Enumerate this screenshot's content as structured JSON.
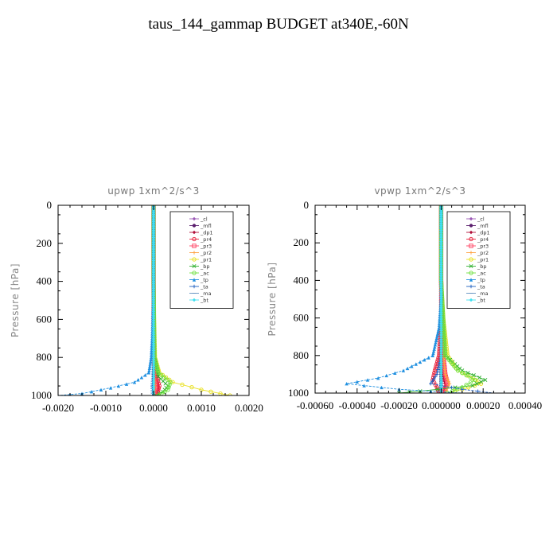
{
  "figure": {
    "title": "taus_144_gammap  BUDGET at340E,-60N"
  },
  "legend_entries": [
    {
      "label": "_cl",
      "color": "#9b59b6",
      "marker": "diamond"
    },
    {
      "label": "_mfl",
      "color": "#5b1f6e",
      "marker": "circle"
    },
    {
      "label": "_dp1",
      "color": "#b0103a",
      "marker": "diamond"
    },
    {
      "label": "_pr4",
      "color": "#e8203a",
      "marker": "circle-open"
    },
    {
      "label": "_pr3",
      "color": "#ff4060",
      "marker": "square-open"
    },
    {
      "label": "_pr2",
      "color": "#ffa040",
      "marker": "plus"
    },
    {
      "label": "_pr1",
      "color": "#e8e020",
      "marker": "circle-open"
    },
    {
      "label": "_bp",
      "color": "#30b030",
      "marker": "x"
    },
    {
      "label": "_ac",
      "color": "#70e040",
      "marker": "circle-open"
    },
    {
      "label": "_tp",
      "color": "#2090e0",
      "marker": "triangle"
    },
    {
      "label": "_ta",
      "color": "#2060c0",
      "marker": "plus"
    },
    {
      "label": "_ma",
      "color": "#6090c0",
      "marker": "dash"
    },
    {
      "label": "_bt",
      "color": "#40e0f0",
      "marker": "diamond"
    }
  ],
  "chart_data": [
    {
      "type": "line",
      "title": "upwp   1xm^2/s^3",
      "ylabel": "Pressure [hPa]",
      "xlabel": "",
      "xlim": [
        -0.002,
        0.002
      ],
      "ylim": [
        1000,
        0
      ],
      "y_inverted": true,
      "xticks": [
        "-0.0020",
        "-0.0010",
        "0.0000",
        "0.0010",
        "0.0020"
      ],
      "xtick_values": [
        -0.002,
        -0.001,
        0.0,
        0.001,
        0.002
      ],
      "yticks": [
        "0",
        "200",
        "400",
        "600",
        "800",
        "1000"
      ],
      "ytick_values": [
        0,
        200,
        400,
        600,
        800,
        1000
      ],
      "legend_position": "top-right",
      "series": [
        {
          "name": "_cl",
          "pressure": [
            0,
            200,
            400,
            600,
            800,
            900,
            950,
            1000
          ],
          "values": [
            0,
            0,
            0,
            0,
            0,
            0,
            0,
            0
          ]
        },
        {
          "name": "_mfl",
          "pressure": [
            0,
            200,
            400,
            600,
            800,
            900,
            950,
            1000
          ],
          "values": [
            0,
            0,
            0,
            0,
            0,
            0,
            0,
            0
          ]
        },
        {
          "name": "_dp1",
          "pressure": [
            0,
            200,
            400,
            600,
            800,
            900,
            960,
            1000
          ],
          "values": [
            0,
            0,
            0,
            0,
            2e-05,
            5e-05,
            0.0001,
            5e-05
          ]
        },
        {
          "name": "_pr4",
          "pressure": [
            0,
            200,
            400,
            600,
            800,
            900,
            950,
            980,
            1000
          ],
          "values": [
            0,
            0,
            0,
            0,
            2e-05,
            7e-05,
            0.00012,
            9e-05,
            3e-05
          ]
        },
        {
          "name": "_pr3",
          "pressure": [
            0,
            400,
            800,
            900,
            950,
            1000
          ],
          "values": [
            0,
            0,
            1e-05,
            3e-05,
            5e-05,
            2e-05
          ]
        },
        {
          "name": "_pr2",
          "pressure": [
            0,
            400,
            800,
            900,
            950,
            1000
          ],
          "values": [
            0,
            0,
            1e-05,
            2e-05,
            3e-05,
            1e-05
          ]
        },
        {
          "name": "_pr1",
          "pressure": [
            0,
            200,
            400,
            600,
            800,
            880,
            930,
            970,
            1000
          ],
          "values": [
            0,
            0,
            0,
            1e-05,
            3e-05,
            0.00012,
            0.0004,
            0.001,
            0.0016
          ]
        },
        {
          "name": "_bp",
          "pressure": [
            0,
            400,
            800,
            900,
            950,
            980,
            1000
          ],
          "values": [
            0,
            0,
            2e-05,
            0.0001,
            0.0003,
            0.0002,
            5e-05
          ]
        },
        {
          "name": "_ac",
          "pressure": [
            0,
            400,
            800,
            880,
            930,
            970,
            1000
          ],
          "values": [
            0,
            0,
            2e-05,
            0.0001,
            0.00035,
            0.0003,
            0.0001
          ]
        },
        {
          "name": "_tp",
          "pressure": [
            0,
            400,
            600,
            700,
            800,
            880,
            930,
            960,
            990,
            1000
          ],
          "values": [
            0,
            0,
            -2e-05,
            -3e-05,
            -5e-05,
            -0.0001,
            -0.0004,
            -0.0009,
            -0.0015,
            -0.002
          ]
        },
        {
          "name": "_ta",
          "pressure": [
            0,
            400,
            800,
            900,
            950,
            1000
          ],
          "values": [
            0,
            0,
            0,
            -1e-05,
            -3e-05,
            -2e-05
          ]
        },
        {
          "name": "_ma",
          "pressure": [
            0,
            400,
            800,
            1000
          ],
          "values": [
            0,
            0,
            0,
            0
          ]
        },
        {
          "name": "_bt",
          "pressure": [
            0,
            400,
            800,
            1000
          ],
          "values": [
            0,
            0,
            0,
            0
          ]
        }
      ]
    },
    {
      "type": "line",
      "title": "vpwp   1xm^2/s^3",
      "ylabel": "Pressure [hPa]",
      "xlabel": "",
      "xlim": [
        -0.0006,
        0.0004
      ],
      "ylim": [
        1000,
        0
      ],
      "y_inverted": true,
      "xticks": [
        "-0.00060",
        "-0.00040",
        "-0.00020",
        "0.000000",
        "0.00020",
        "0.00040"
      ],
      "xtick_values": [
        -0.0006,
        -0.0004,
        -0.0002,
        0.0,
        0.0002,
        0.0004
      ],
      "yticks": [
        "0",
        "200",
        "400",
        "600",
        "800",
        "1000"
      ],
      "ytick_values": [
        0,
        200,
        400,
        600,
        800,
        1000
      ],
      "legend_position": "top-right",
      "series": [
        {
          "name": "_cl",
          "pressure": [
            0,
            200,
            400,
            600,
            800,
            900,
            950,
            1000
          ],
          "values": [
            0,
            0,
            0,
            0,
            0,
            0,
            0,
            0
          ]
        },
        {
          "name": "_mfl",
          "pressure": [
            0,
            200,
            400,
            600,
            800,
            900,
            950,
            1000
          ],
          "values": [
            0,
            0,
            0,
            0,
            0,
            0,
            0,
            0
          ]
        },
        {
          "name": "_dp1",
          "pressure": [
            0,
            200,
            400,
            600,
            800,
            900,
            960,
            1000
          ],
          "values": [
            0,
            0,
            0,
            0,
            5e-06,
            1e-05,
            2e-05,
            1e-05
          ]
        },
        {
          "name": "_pr4",
          "pressure": [
            0,
            200,
            400,
            600,
            800,
            880,
            930,
            970,
            1000
          ],
          "values": [
            0,
            0,
            0,
            0,
            -1e-05,
            -3e-05,
            -4e-05,
            -2e-05,
            -1e-05
          ]
        },
        {
          "name": "_pr3",
          "pressure": [
            0,
            400,
            800,
            900,
            950,
            1000
          ],
          "values": [
            0,
            0,
            1e-05,
            2e-05,
            3e-05,
            1e-05
          ]
        },
        {
          "name": "_pr2",
          "pressure": [
            0,
            400,
            800,
            900,
            950,
            1000
          ],
          "values": [
            0,
            0,
            1e-05,
            2e-05,
            4e-05,
            2e-05
          ]
        },
        {
          "name": "_pr1",
          "pressure": [
            0,
            200,
            400,
            600,
            800,
            880,
            920,
            950,
            980,
            1000
          ],
          "values": [
            0,
            0,
            0,
            1e-05,
            3e-05,
            8e-05,
            0.00015,
            0.00019,
            0.0001,
            3e-05
          ]
        },
        {
          "name": "_bp",
          "pressure": [
            0,
            400,
            800,
            880,
            930,
            960,
            990,
            1000
          ],
          "values": [
            0,
            0,
            2e-05,
            0.0001,
            0.00021,
            0.00015,
            -0.0001,
            -0.0002
          ]
        },
        {
          "name": "_ac",
          "pressure": [
            0,
            400,
            800,
            880,
            930,
            970,
            1000
          ],
          "values": [
            0,
            0,
            2e-05,
            8e-05,
            0.00016,
            0.0001,
            3e-05
          ]
        },
        {
          "name": "_tp",
          "pressure": [
            0,
            200,
            500,
            650,
            800,
            880,
            920,
            950,
            980,
            1000
          ],
          "values": [
            0,
            0,
            0,
            -1e-05,
            -4e-05,
            -0.00018,
            -0.0003,
            -0.00045,
            -0.0002,
            0.0001
          ]
        },
        {
          "name": "_ta",
          "pressure": [
            0,
            400,
            800,
            900,
            950,
            980,
            1000
          ],
          "values": [
            0,
            0,
            0,
            -2e-05,
            -5e-05,
            0.0001,
            0.00025
          ]
        },
        {
          "name": "_ma",
          "pressure": [
            0,
            400,
            800,
            1000
          ],
          "values": [
            0,
            0,
            0,
            0
          ]
        },
        {
          "name": "_bt",
          "pressure": [
            0,
            400,
            800,
            1000
          ],
          "values": [
            0,
            0,
            0,
            0
          ]
        }
      ]
    }
  ]
}
